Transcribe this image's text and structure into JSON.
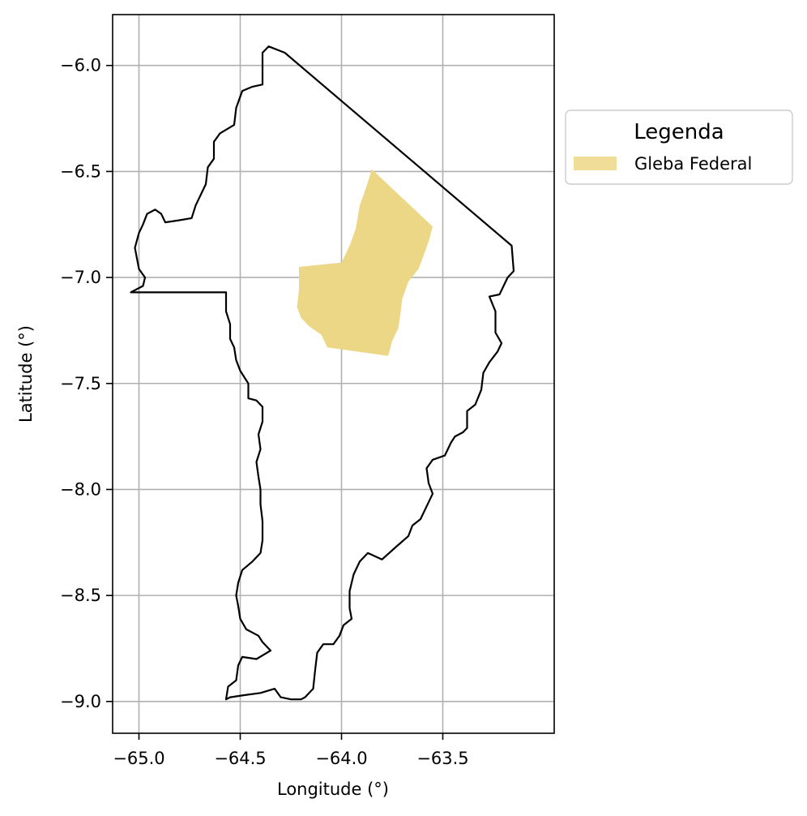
{
  "chart_data": {
    "type": "map",
    "xlabel": "Longitude (°)",
    "ylabel": "Latitude (°)",
    "xlim": [
      -65.13,
      -62.95
    ],
    "ylim": [
      -9.15,
      -5.76
    ],
    "x_ticks": [
      -65.0,
      -64.5,
      -64.0,
      -63.5
    ],
    "x_tick_labels": [
      "−65.0",
      "−64.5",
      "−64.0",
      "−63.5"
    ],
    "y_ticks": [
      -6.0,
      -6.5,
      -7.0,
      -7.5,
      -8.0,
      -8.5,
      -9.0
    ],
    "y_tick_labels": [
      "−6.0",
      "−6.5",
      "−7.0",
      "−7.5",
      "−8.0",
      "−8.5",
      "−9.0"
    ],
    "grid": true,
    "legend": {
      "title": "Legenda",
      "placement": "outside-right-top",
      "entries": [
        {
          "label": "Gleba Federal",
          "color": "#ecd786"
        }
      ]
    },
    "layers": [
      {
        "name": "municipality-boundary",
        "style": "outline",
        "stroke": "#000000",
        "coordinates": [
          [
            -64.36,
            -5.91
          ],
          [
            -64.28,
            -5.94
          ],
          [
            -63.16,
            -6.85
          ],
          [
            -63.15,
            -6.97
          ],
          [
            -63.18,
            -7.0
          ],
          [
            -63.22,
            -7.08
          ],
          [
            -63.27,
            -7.09
          ],
          [
            -63.24,
            -7.16
          ],
          [
            -63.24,
            -7.26
          ],
          [
            -63.21,
            -7.31
          ],
          [
            -63.23,
            -7.35
          ],
          [
            -63.27,
            -7.4
          ],
          [
            -63.3,
            -7.45
          ],
          [
            -63.31,
            -7.53
          ],
          [
            -63.34,
            -7.6
          ],
          [
            -63.38,
            -7.63
          ],
          [
            -63.38,
            -7.71
          ],
          [
            -63.4,
            -7.73
          ],
          [
            -63.44,
            -7.75
          ],
          [
            -63.46,
            -7.78
          ],
          [
            -63.49,
            -7.84
          ],
          [
            -63.55,
            -7.86
          ],
          [
            -63.58,
            -7.9
          ],
          [
            -63.57,
            -7.97
          ],
          [
            -63.55,
            -8.02
          ],
          [
            -63.58,
            -8.08
          ],
          [
            -63.61,
            -8.14
          ],
          [
            -63.65,
            -8.17
          ],
          [
            -63.67,
            -8.22
          ],
          [
            -63.73,
            -8.27
          ],
          [
            -63.8,
            -8.33
          ],
          [
            -63.87,
            -8.3
          ],
          [
            -63.91,
            -8.34
          ],
          [
            -63.94,
            -8.4
          ],
          [
            -63.96,
            -8.48
          ],
          [
            -63.96,
            -8.56
          ],
          [
            -63.95,
            -8.61
          ],
          [
            -63.99,
            -8.64
          ],
          [
            -64.01,
            -8.69
          ],
          [
            -64.04,
            -8.73
          ],
          [
            -64.09,
            -8.73
          ],
          [
            -64.12,
            -8.77
          ],
          [
            -64.13,
            -8.85
          ],
          [
            -64.14,
            -8.94
          ],
          [
            -64.16,
            -8.96
          ],
          [
            -64.18,
            -8.98
          ],
          [
            -64.2,
            -8.99
          ],
          [
            -64.25,
            -8.99
          ],
          [
            -64.3,
            -8.98
          ],
          [
            -64.33,
            -8.94
          ],
          [
            -64.4,
            -8.96
          ],
          [
            -64.48,
            -8.97
          ],
          [
            -64.55,
            -8.98
          ],
          [
            -64.57,
            -8.99
          ],
          [
            -64.56,
            -8.93
          ],
          [
            -64.52,
            -8.9
          ],
          [
            -64.51,
            -8.83
          ],
          [
            -64.49,
            -8.79
          ],
          [
            -64.42,
            -8.8
          ],
          [
            -64.35,
            -8.76
          ],
          [
            -64.39,
            -8.72
          ],
          [
            -64.41,
            -8.69
          ],
          [
            -64.47,
            -8.66
          ],
          [
            -64.5,
            -8.61
          ],
          [
            -64.51,
            -8.55
          ],
          [
            -64.52,
            -8.5
          ],
          [
            -64.51,
            -8.44
          ],
          [
            -64.49,
            -8.38
          ],
          [
            -64.44,
            -8.34
          ],
          [
            -64.4,
            -8.3
          ],
          [
            -64.39,
            -8.24
          ],
          [
            -64.39,
            -8.15
          ],
          [
            -64.4,
            -8.07
          ],
          [
            -64.4,
            -8.0
          ],
          [
            -64.41,
            -7.94
          ],
          [
            -64.42,
            -7.87
          ],
          [
            -64.4,
            -7.81
          ],
          [
            -64.41,
            -7.74
          ],
          [
            -64.39,
            -7.68
          ],
          [
            -64.39,
            -7.61
          ],
          [
            -64.42,
            -7.58
          ],
          [
            -64.46,
            -7.57
          ],
          [
            -64.46,
            -7.5
          ],
          [
            -64.5,
            -7.44
          ],
          [
            -64.52,
            -7.39
          ],
          [
            -64.53,
            -7.33
          ],
          [
            -64.55,
            -7.29
          ],
          [
            -64.55,
            -7.22
          ],
          [
            -64.57,
            -7.16
          ],
          [
            -64.57,
            -7.07
          ],
          [
            -64.72,
            -7.07
          ],
          [
            -64.86,
            -7.07
          ],
          [
            -65.04,
            -7.07
          ],
          [
            -64.98,
            -7.04
          ],
          [
            -64.97,
            -7.0
          ],
          [
            -65.0,
            -6.96
          ],
          [
            -65.01,
            -6.91
          ],
          [
            -65.02,
            -6.86
          ],
          [
            -65.0,
            -6.79
          ],
          [
            -64.98,
            -6.75
          ],
          [
            -64.96,
            -6.7
          ],
          [
            -64.92,
            -6.68
          ],
          [
            -64.89,
            -6.7
          ],
          [
            -64.87,
            -6.74
          ],
          [
            -64.8,
            -6.73
          ],
          [
            -64.74,
            -6.72
          ],
          [
            -64.72,
            -6.66
          ],
          [
            -64.69,
            -6.6
          ],
          [
            -64.67,
            -6.56
          ],
          [
            -64.66,
            -6.48
          ],
          [
            -64.63,
            -6.44
          ],
          [
            -64.63,
            -6.36
          ],
          [
            -64.6,
            -6.32
          ],
          [
            -64.53,
            -6.28
          ],
          [
            -64.52,
            -6.2
          ],
          [
            -64.49,
            -6.12
          ],
          [
            -64.44,
            -6.1
          ],
          [
            -64.39,
            -6.09
          ],
          [
            -64.39,
            -5.94
          ],
          [
            -64.36,
            -5.91
          ]
        ]
      },
      {
        "name": "Gleba Federal",
        "style": "filled",
        "fill": "#ecd786",
        "coordinates": [
          [
            -63.85,
            -6.49
          ],
          [
            -63.55,
            -6.76
          ],
          [
            -63.57,
            -6.83
          ],
          [
            -63.6,
            -6.91
          ],
          [
            -63.62,
            -6.96
          ],
          [
            -63.67,
            -7.02
          ],
          [
            -63.7,
            -7.1
          ],
          [
            -63.71,
            -7.18
          ],
          [
            -63.72,
            -7.24
          ],
          [
            -63.75,
            -7.3
          ],
          [
            -63.77,
            -7.37
          ],
          [
            -64.07,
            -7.33
          ],
          [
            -64.1,
            -7.27
          ],
          [
            -64.16,
            -7.23
          ],
          [
            -64.2,
            -7.19
          ],
          [
            -64.22,
            -7.14
          ],
          [
            -64.21,
            -7.06
          ],
          [
            -64.21,
            -6.95
          ],
          [
            -64.0,
            -6.93
          ],
          [
            -63.96,
            -6.85
          ],
          [
            -63.93,
            -6.77
          ],
          [
            -63.91,
            -6.66
          ],
          [
            -63.88,
            -6.58
          ],
          [
            -63.85,
            -6.49
          ]
        ]
      }
    ]
  }
}
